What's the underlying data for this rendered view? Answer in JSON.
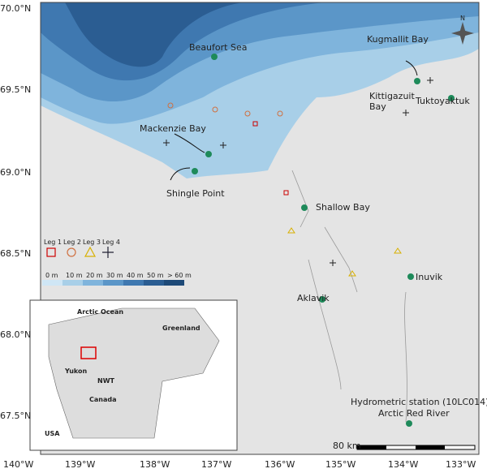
{
  "axes": {
    "lat_labels": [
      "70.0°N",
      "69.5°N",
      "69.0°N",
      "68.5°N",
      "68.0°N",
      "67.5°N"
    ],
    "lon_labels": [
      "140°W",
      "139°W",
      "138°W",
      "137°W",
      "136°W",
      "135°W",
      "134°W",
      "133°W"
    ]
  },
  "places": [
    {
      "label": "Beaufort Sea"
    },
    {
      "label": "Kugmallit Bay"
    },
    {
      "label": "Kittigazuit Bay"
    },
    {
      "label": "Tuktoyaktuk"
    },
    {
      "label": "Mackenzie Bay"
    },
    {
      "label": "Shingle Point"
    },
    {
      "label": "Shallow Bay"
    },
    {
      "label": "Inuvik"
    },
    {
      "label": "Aklavik"
    },
    {
      "label": "Hydrometric station (10LC014)"
    },
    {
      "label": "Arctic Red River"
    }
  ],
  "legend": {
    "legs": [
      "Leg 1",
      "Leg 2",
      "Leg 3",
      "Leg 4"
    ]
  },
  "depth_legend": [
    "0 m",
    "10 m",
    "20 m",
    "30 m",
    "40 m",
    "50 m",
    "> 60 m"
  ],
  "inset": {
    "labels": [
      "Arctic Ocean",
      "Greenland",
      "Yukon",
      "NWT",
      "Canada",
      "USA"
    ]
  },
  "scale_bar": "80 km",
  "compass": "N"
}
